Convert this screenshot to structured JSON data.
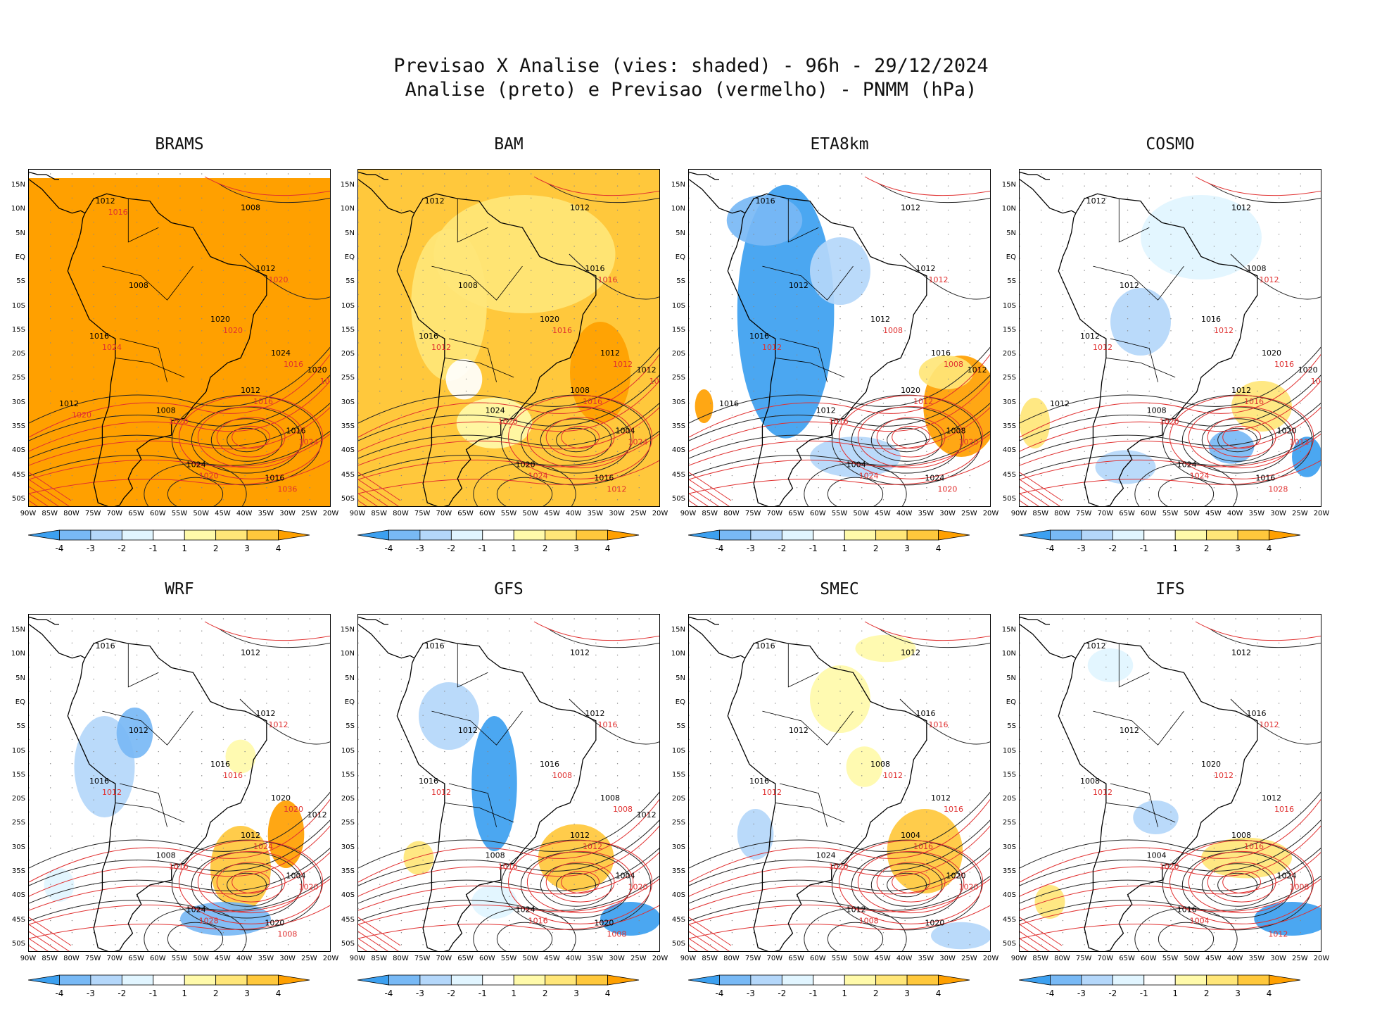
{
  "header": {
    "line1": "Previsao X Analise (vies: shaded) - 96h - 29/12/2024",
    "line2": "Analise (preto) e Previsao (vermelho) - PNMM (hPa)"
  },
  "axes": {
    "lat_labels": [
      "15N",
      "10N",
      "5N",
      "EQ",
      "5S",
      "10S",
      "15S",
      "20S",
      "25S",
      "30S",
      "35S",
      "40S",
      "45S",
      "50S"
    ],
    "lon_labels": [
      "90W",
      "85W",
      "80W",
      "75W",
      "70W",
      "65W",
      "60W",
      "55W",
      "50W",
      "45W",
      "40W",
      "35W",
      "30W",
      "25W",
      "20W"
    ]
  },
  "colorbar": {
    "labels": [
      "-4",
      "-3",
      "-2",
      "-1",
      "1",
      "2",
      "3",
      "4"
    ],
    "colors": [
      "#3ca0f0",
      "#78b9f5",
      "#b4d7fa",
      "#e1f5ff",
      "#ffffff",
      "#fffaaa",
      "#ffe678",
      "#ffc83c",
      "#ffa000"
    ]
  },
  "panels": [
    {
      "id": "brams",
      "title": "BRAMS",
      "bias": "warm-full",
      "analysis_labels": [
        "1012",
        "1008",
        "1008",
        "1012",
        "1016",
        "1020",
        "1024",
        "1012",
        "1008",
        "1016",
        "1024",
        "1016",
        "1020",
        "1012"
      ],
      "forecast_labels": [
        "1020",
        "1024",
        "1020",
        "1016",
        "1016",
        "1020",
        "1024",
        "1020",
        "1036",
        "1032",
        "1020",
        "1016"
      ]
    },
    {
      "id": "bam",
      "title": "BAM",
      "bias": "warm",
      "analysis_labels": [
        "1012",
        "1012",
        "1008",
        "1016",
        "1016",
        "1020",
        "1012",
        "1008",
        "1024",
        "1004",
        "1020",
        "1016",
        "1012"
      ],
      "forecast_labels": [
        "1016",
        "1012",
        "1016",
        "1012",
        "1016",
        "1020",
        "1024",
        "1024",
        "1012",
        "1024"
      ]
    },
    {
      "id": "eta8km",
      "title": "ETA8km",
      "bias": "cool",
      "analysis_labels": [
        "1016",
        "1012",
        "1012",
        "1012",
        "1016",
        "1012",
        "1016",
        "1020",
        "1012",
        "1008",
        "1004",
        "1024",
        "1012",
        "1016"
      ],
      "forecast_labels": [
        "1012",
        "1012",
        "1008",
        "1008",
        "1012",
        "1016",
        "1020",
        "1024",
        "1020"
      ]
    },
    {
      "id": "cosmo",
      "title": "COSMO",
      "bias": "mixed",
      "analysis_labels": [
        "1012",
        "1012",
        "1012",
        "1008",
        "1012",
        "1016",
        "1020",
        "1012",
        "1008",
        "1020",
        "1024",
        "1016",
        "1020",
        "1012"
      ],
      "forecast_labels": [
        "1012",
        "1012",
        "1012",
        "1016",
        "1016",
        "1020",
        "1012",
        "1024",
        "1028",
        "1020"
      ]
    },
    {
      "id": "wrf",
      "title": "WRF",
      "bias": "mixed-warm",
      "analysis_labels": [
        "1016",
        "1012",
        "1012",
        "1012",
        "1016",
        "1016",
        "1020",
        "1012",
        "1008",
        "1004",
        "1024",
        "1020",
        "1012"
      ],
      "forecast_labels": [
        "1012",
        "1012",
        "1016",
        "1020",
        "1024",
        "1016",
        "1020",
        "1028",
        "1008"
      ]
    },
    {
      "id": "gfs",
      "title": "GFS",
      "bias": "mixed-cool",
      "analysis_labels": [
        "1016",
        "1012",
        "1012",
        "1012",
        "1016",
        "1016",
        "1008",
        "1012",
        "1008",
        "1004",
        "1024",
        "1020",
        "1012"
      ],
      "forecast_labels": [
        "1016",
        "1012",
        "1008",
        "1008",
        "1012",
        "1016",
        "1020",
        "1016",
        "1008"
      ]
    },
    {
      "id": "smec",
      "title": "SMEC",
      "bias": "light-warm",
      "analysis_labels": [
        "1016",
        "1012",
        "1012",
        "1016",
        "1016",
        "1008",
        "1012",
        "1004",
        "1024",
        "1020",
        "1012",
        "1020"
      ],
      "forecast_labels": [
        "1016",
        "1012",
        "1012",
        "1016",
        "1016",
        "1020",
        "1020",
        "1008"
      ]
    },
    {
      "id": "ifs",
      "title": "IFS",
      "bias": "light-mixed",
      "analysis_labels": [
        "1012",
        "1012",
        "1012",
        "1016",
        "1008",
        "1020",
        "1012",
        "1008",
        "1004",
        "1024",
        "1016"
      ],
      "forecast_labels": [
        "1012",
        "1012",
        "1012",
        "1016",
        "1016",
        "1020",
        "1008",
        "1004",
        "1012"
      ]
    }
  ]
}
